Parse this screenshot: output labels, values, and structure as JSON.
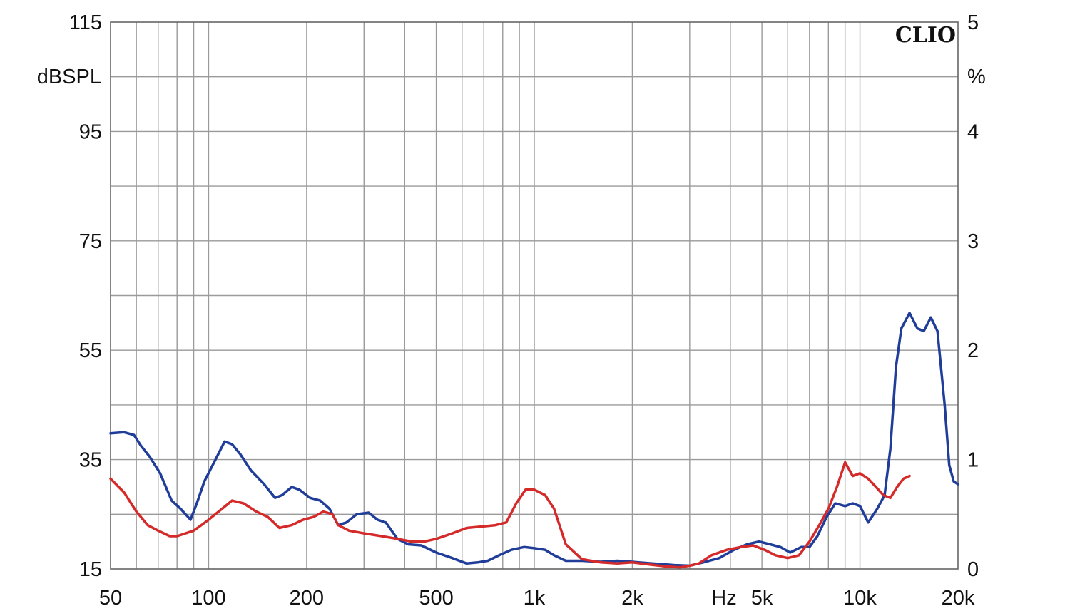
{
  "chart_data": {
    "type": "line",
    "brand": "CLIO",
    "ylabel_left": "dBSPL",
    "ylabel_right": "%",
    "xlabel": "Hz",
    "x_scale": "log",
    "xlim": [
      50,
      20000
    ],
    "ylim_left": [
      15,
      115
    ],
    "ylim_right": [
      0,
      5
    ],
    "x_tick_labels": [
      {
        "value": 50,
        "label": "50"
      },
      {
        "value": 100,
        "label": "100"
      },
      {
        "value": 200,
        "label": "200"
      },
      {
        "value": 500,
        "label": "500"
      },
      {
        "value": 1000,
        "label": "1k"
      },
      {
        "value": 2000,
        "label": "2k"
      },
      {
        "value": 5000,
        "label": "5k"
      },
      {
        "value": 10000,
        "label": "10k"
      },
      {
        "value": 20000,
        "label": "20k"
      }
    ],
    "y_left_tick_labels": [
      "15",
      "35",
      "55",
      "75",
      "95",
      "115"
    ],
    "y_right_tick_labels": [
      "0",
      "1",
      "2",
      "3",
      "4",
      "5"
    ],
    "grid": true,
    "series": [
      {
        "color": "#1f3d99",
        "axis": "left",
        "x": [
          50,
          55,
          59,
          62,
          66,
          71,
          77,
          82,
          88,
          92,
          97,
          105,
          112,
          118,
          125,
          135,
          148,
          160,
          168,
          180,
          190,
          205,
          220,
          235,
          250,
          265,
          285,
          310,
          330,
          350,
          380,
          410,
          450,
          500,
          560,
          620,
          670,
          720,
          780,
          850,
          930,
          1000,
          1080,
          1150,
          1250,
          1400,
          1600,
          1800,
          2000,
          2300,
          2700,
          3000,
          3300,
          3700,
          4100,
          4500,
          4900,
          5300,
          5700,
          6100,
          6600,
          7000,
          7400,
          7900,
          8400,
          9000,
          9500,
          10000,
          10600,
          11300,
          11900,
          12400,
          12900,
          13400,
          14200,
          15000,
          15700,
          16500,
          17300,
          18200,
          18800,
          19400,
          20000
        ],
        "values": [
          39.8,
          40.0,
          39.5,
          37.5,
          35.5,
          32.5,
          27.5,
          26.0,
          24.0,
          27.0,
          31.0,
          35.0,
          38.3,
          37.8,
          36.0,
          33.0,
          30.5,
          28.0,
          28.5,
          30.0,
          29.5,
          28.0,
          27.5,
          26.0,
          23.0,
          23.5,
          25.0,
          25.3,
          24.0,
          23.5,
          20.5,
          19.5,
          19.3,
          18.0,
          17.0,
          16.0,
          16.2,
          16.5,
          17.5,
          18.5,
          19.0,
          18.8,
          18.5,
          17.5,
          16.5,
          16.5,
          16.3,
          16.5,
          16.3,
          16.0,
          15.7,
          15.6,
          16.2,
          17.0,
          18.5,
          19.5,
          20.0,
          19.5,
          19.0,
          18.0,
          19.0,
          19.0,
          21.0,
          24.5,
          27.0,
          26.5,
          27.0,
          26.5,
          23.5,
          26.0,
          28.5,
          37.0,
          52.0,
          59.0,
          61.8,
          59.0,
          58.5,
          61.0,
          58.5,
          45.0,
          34.0,
          31.0,
          30.5
        ]
      },
      {
        "color": "#d42a2a",
        "axis": "left",
        "x": [
          50,
          55,
          60,
          65,
          70,
          76,
          80,
          85,
          90,
          95,
          100,
          110,
          118,
          128,
          140,
          152,
          165,
          180,
          195,
          210,
          225,
          240,
          250,
          270,
          300,
          340,
          380,
          420,
          460,
          500,
          560,
          620,
          700,
          760,
          820,
          880,
          940,
          1000,
          1080,
          1150,
          1250,
          1400,
          1600,
          1800,
          2000,
          2200,
          2500,
          2800,
          3000,
          3200,
          3500,
          3900,
          4300,
          4700,
          5100,
          5500,
          6000,
          6500,
          7000,
          7500,
          8000,
          8500,
          9000,
          9500,
          10000,
          10600,
          11200,
          11800,
          12400,
          13000,
          13600,
          14200
        ],
        "values": [
          31.5,
          29.0,
          25.5,
          23.0,
          22.0,
          21.0,
          21.0,
          21.5,
          22.0,
          23.0,
          24.0,
          26.0,
          27.5,
          27.0,
          25.5,
          24.5,
          22.5,
          23.0,
          24.0,
          24.5,
          25.5,
          25.0,
          23.0,
          22.0,
          21.5,
          21.0,
          20.5,
          20.0,
          20.0,
          20.5,
          21.5,
          22.5,
          22.8,
          23.0,
          23.5,
          27.0,
          29.5,
          29.5,
          28.5,
          26.0,
          19.5,
          16.8,
          16.2,
          16.0,
          16.2,
          15.9,
          15.5,
          15.3,
          15.6,
          16.0,
          17.5,
          18.5,
          19.0,
          19.3,
          18.5,
          17.5,
          17.0,
          17.5,
          20.0,
          23.0,
          26.0,
          30.0,
          34.5,
          32.0,
          32.5,
          31.5,
          30.0,
          28.5,
          28.0,
          30.0,
          31.5,
          32.0
        ]
      }
    ]
  }
}
